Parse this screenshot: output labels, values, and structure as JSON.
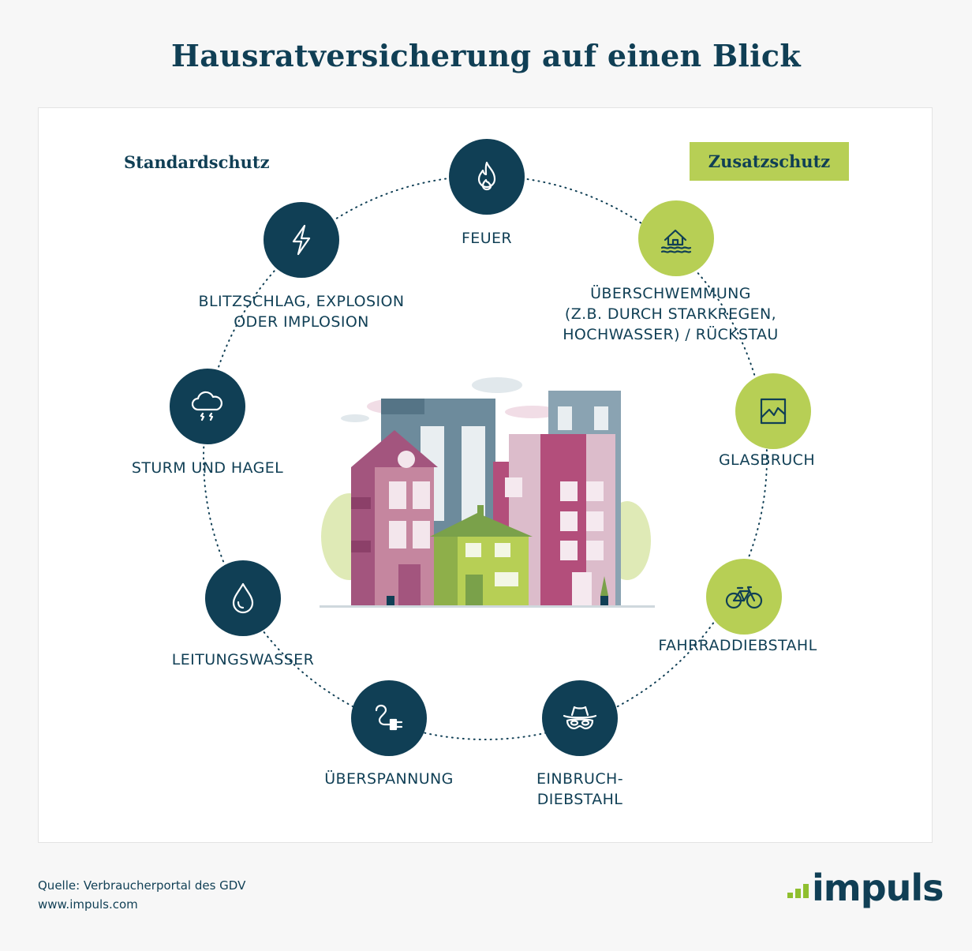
{
  "title": "Hausratversicherung auf einen Blick",
  "legend": {
    "standard": "Standardschutz",
    "additional": "Zusatzschutz"
  },
  "colors": {
    "standard": "#103f55",
    "additional": "#b7cf55",
    "text": "#103f55"
  },
  "items": [
    {
      "label": "FEUER",
      "icon": "flame-icon",
      "type": "standard"
    },
    {
      "label": "ÜBERSCHWEMMUNG\n(Z.B. DURCH STARKREGEN,\nHOCHWASSER) / RÜCKSTAU",
      "icon": "flooded-house-icon",
      "type": "additional"
    },
    {
      "label": "GLASBRUCH",
      "icon": "broken-glass-icon",
      "type": "additional"
    },
    {
      "label": "FAHRRADDIEBSTAHL",
      "icon": "bicycle-icon",
      "type": "additional"
    },
    {
      "label": "EINBRUCH-\nDIEBSTAHL",
      "icon": "burglar-icon",
      "type": "standard"
    },
    {
      "label": "ÜBERSPANNUNG",
      "icon": "power-plug-icon",
      "type": "standard"
    },
    {
      "label": "LEITUNGSWASSER",
      "icon": "water-drop-icon",
      "type": "standard"
    },
    {
      "label": "STURM UND HAGEL",
      "icon": "storm-cloud-icon",
      "type": "standard"
    },
    {
      "label": "BLITZSCHLAG, EXPLOSION\nODER IMPLOSION",
      "icon": "lightning-icon",
      "type": "standard"
    }
  ],
  "footer": {
    "source": "Quelle: Verbraucherportal des GDV",
    "website": "www.impuls.com",
    "logo_text": "impuls"
  }
}
